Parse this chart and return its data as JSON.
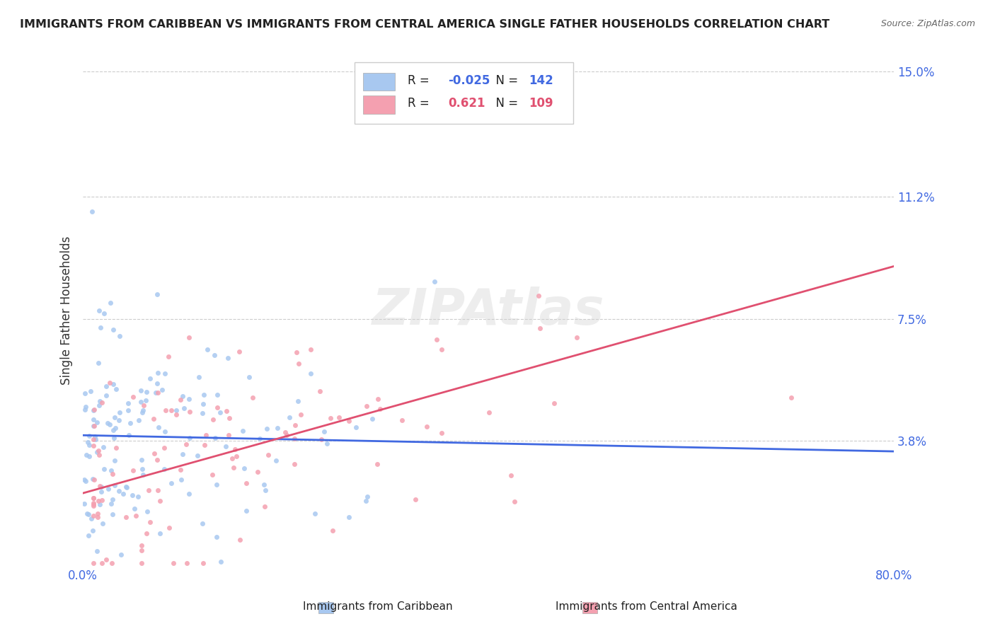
{
  "title": "IMMIGRANTS FROM CARIBBEAN VS IMMIGRANTS FROM CENTRAL AMERICA SINGLE FATHER HOUSEHOLDS CORRELATION CHART",
  "source": "Source: ZipAtlas.com",
  "xlabel_caribbean": "Immigrants from Caribbean",
  "xlabel_central": "Immigrants from Central America",
  "ylabel": "Single Father Households",
  "r_caribbean": -0.025,
  "n_caribbean": 142,
  "r_central": 0.621,
  "n_central": 109,
  "color_caribbean": "#a8c8f0",
  "color_central": "#f4a0b0",
  "line_color_caribbean": "#4169e1",
  "line_color_central": "#e05070",
  "xmin": 0.0,
  "xmax": 0.8,
  "ymin": 0.0,
  "ymax": 0.155,
  "yticks": [
    0.038,
    0.075,
    0.112,
    0.15
  ],
  "ytick_labels": [
    "3.8%",
    "7.5%",
    "11.2%",
    "15.0%"
  ],
  "xticks": [
    0.0,
    0.1,
    0.2,
    0.3,
    0.4,
    0.5,
    0.6,
    0.7,
    0.8
  ],
  "xtick_labels": [
    "0.0%",
    "",
    "",
    "",
    "",
    "",
    "",
    "",
    "80.0%"
  ],
  "watermark": "ZIPAtlas",
  "background_color": "#ffffff",
  "grid_color": "#cccccc"
}
